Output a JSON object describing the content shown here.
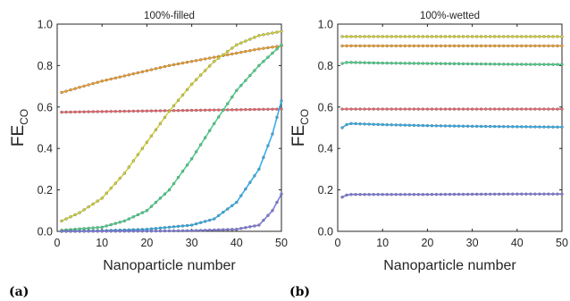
{
  "chart_data": [
    {
      "type": "line",
      "panel_label": "(a)",
      "title": "100%-filled",
      "xlabel": "Nanoparticle number",
      "ylabel_main": "FE",
      "ylabel_sub": "CO",
      "xlim": [
        0,
        50
      ],
      "ylim": [
        0,
        1
      ],
      "xticks": [
        "0",
        "10",
        "20",
        "30",
        "40",
        "50"
      ],
      "yticks": [
        "0.0",
        "0.2",
        "0.4",
        "0.6",
        "0.8",
        "1.0"
      ],
      "grid": false,
      "series": [
        {
          "color": "#eea132",
          "x": [
            1,
            5,
            10,
            15,
            20,
            25,
            30,
            35,
            40,
            45,
            50
          ],
          "y": [
            0.67,
            0.695,
            0.725,
            0.75,
            0.775,
            0.8,
            0.82,
            0.84,
            0.86,
            0.88,
            0.895
          ]
        },
        {
          "color": "#e8676d",
          "x": [
            1,
            10,
            20,
            30,
            40,
            50
          ],
          "y": [
            0.575,
            0.578,
            0.581,
            0.584,
            0.587,
            0.59
          ]
        },
        {
          "color": "#d2d33e",
          "x": [
            1,
            5,
            10,
            15,
            20,
            25,
            30,
            35,
            40,
            45,
            50
          ],
          "y": [
            0.05,
            0.09,
            0.16,
            0.28,
            0.43,
            0.58,
            0.71,
            0.82,
            0.9,
            0.945,
            0.965
          ]
        },
        {
          "color": "#4fcf8c",
          "x": [
            1,
            10,
            15,
            20,
            25,
            30,
            35,
            40,
            45,
            50
          ],
          "y": [
            0.005,
            0.02,
            0.05,
            0.1,
            0.2,
            0.35,
            0.52,
            0.68,
            0.8,
            0.9
          ]
        },
        {
          "color": "#36aee8",
          "x": [
            1,
            10,
            20,
            30,
            35,
            40,
            45,
            48,
            50
          ],
          "y": [
            0.0,
            0.003,
            0.01,
            0.03,
            0.06,
            0.14,
            0.3,
            0.47,
            0.63
          ]
        },
        {
          "color": "#7d7adb",
          "x": [
            1,
            20,
            30,
            40,
            45,
            48,
            50
          ],
          "y": [
            0.0,
            0.001,
            0.003,
            0.01,
            0.03,
            0.1,
            0.18
          ]
        }
      ]
    },
    {
      "type": "line",
      "panel_label": "(b)",
      "title": "100%-wetted",
      "xlabel": "Nanoparticle number",
      "ylabel_main": "FE",
      "ylabel_sub": "CO",
      "xlim": [
        0,
        50
      ],
      "ylim": [
        0,
        1
      ],
      "xticks": [
        "0",
        "10",
        "20",
        "30",
        "40",
        "50"
      ],
      "yticks": [
        "0.0",
        "0.2",
        "0.4",
        "0.6",
        "0.8",
        "1.0"
      ],
      "grid": false,
      "series": [
        {
          "color": "#d2d33e",
          "x": [
            1,
            50
          ],
          "y": [
            0.94,
            0.94
          ]
        },
        {
          "color": "#eea132",
          "x": [
            1,
            50
          ],
          "y": [
            0.895,
            0.895
          ]
        },
        {
          "color": "#4fcf8c",
          "x": [
            1,
            2,
            3,
            10,
            20,
            30,
            40,
            50
          ],
          "y": [
            0.81,
            0.815,
            0.815,
            0.812,
            0.81,
            0.808,
            0.806,
            0.805
          ]
        },
        {
          "color": "#e8676d",
          "x": [
            1,
            50
          ],
          "y": [
            0.59,
            0.59
          ]
        },
        {
          "color": "#36aee8",
          "x": [
            1,
            2,
            3,
            10,
            20,
            30,
            40,
            50
          ],
          "y": [
            0.5,
            0.515,
            0.52,
            0.515,
            0.51,
            0.507,
            0.505,
            0.503
          ]
        },
        {
          "color": "#7d7adb",
          "x": [
            1,
            2,
            3,
            10,
            20,
            30,
            40,
            50
          ],
          "y": [
            0.165,
            0.175,
            0.178,
            0.178,
            0.178,
            0.179,
            0.18,
            0.18
          ]
        }
      ]
    }
  ]
}
